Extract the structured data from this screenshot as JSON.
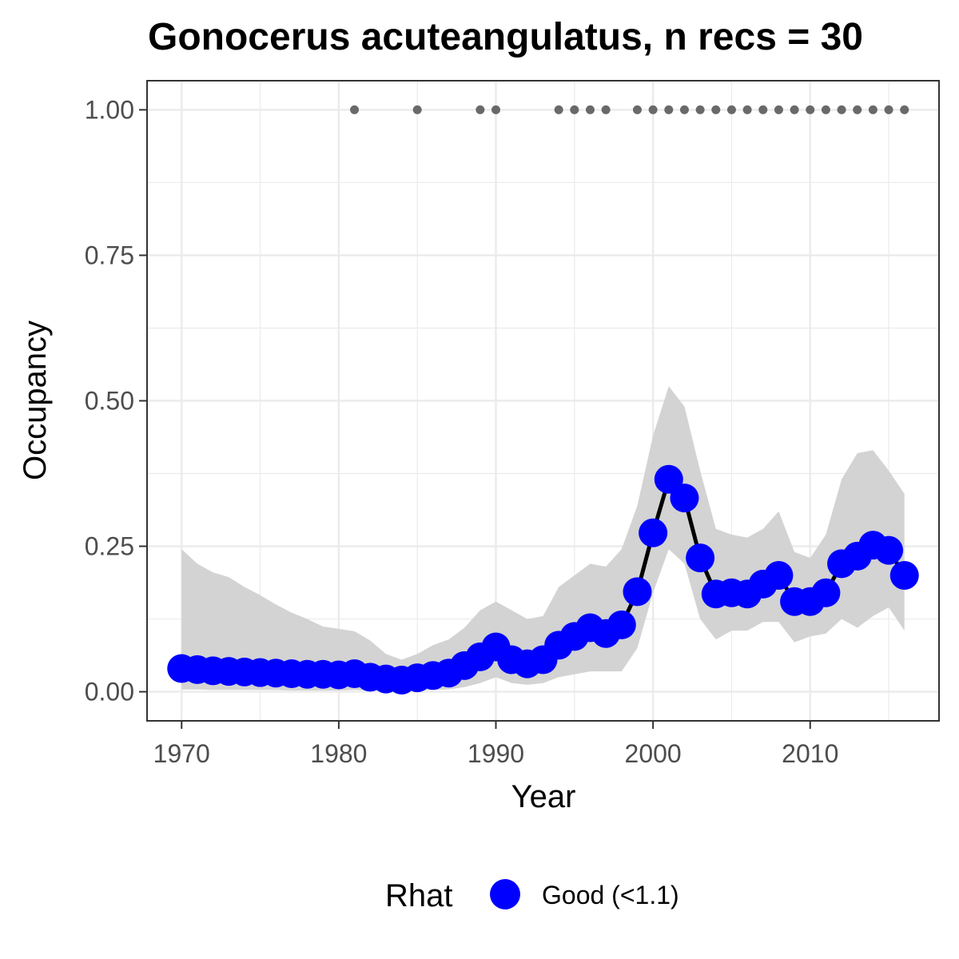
{
  "chart_data": {
    "type": "line",
    "title": "Gonocerus acuteangulatus, n recs = 30",
    "xlabel": "Year",
    "ylabel": "Occupancy",
    "xlim": [
      1967.8,
      2018.2
    ],
    "ylim": [
      -0.05,
      1.05
    ],
    "x_ticks": [
      1970,
      1980,
      1990,
      2000,
      2010
    ],
    "y_ticks": [
      0.0,
      0.25,
      0.5,
      0.75,
      1.0
    ],
    "y_tick_labels": [
      "0.00",
      "0.25",
      "0.50",
      "0.75",
      "1.00"
    ],
    "grid": true,
    "series": [
      {
        "name": "Good (<1.1)",
        "x": [
          1970,
          1971,
          1972,
          1973,
          1974,
          1975,
          1976,
          1977,
          1978,
          1979,
          1980,
          1981,
          1982,
          1983,
          1984,
          1985,
          1986,
          1987,
          1988,
          1989,
          1990,
          1991,
          1992,
          1993,
          1994,
          1995,
          1996,
          1997,
          1998,
          1999,
          2000,
          2001,
          2002,
          2003,
          2004,
          2005,
          2006,
          2007,
          2008,
          2009,
          2010,
          2011,
          2012,
          2013,
          2014,
          2015,
          2016
        ],
        "y": [
          0.04,
          0.038,
          0.036,
          0.035,
          0.034,
          0.033,
          0.032,
          0.031,
          0.03,
          0.03,
          0.029,
          0.031,
          0.025,
          0.022,
          0.02,
          0.024,
          0.028,
          0.032,
          0.045,
          0.06,
          0.077,
          0.055,
          0.048,
          0.055,
          0.08,
          0.095,
          0.11,
          0.1,
          0.115,
          0.172,
          0.273,
          0.365,
          0.333,
          0.23,
          0.168,
          0.17,
          0.168,
          0.185,
          0.2,
          0.155,
          0.155,
          0.17,
          0.22,
          0.233,
          0.252,
          0.243,
          0.2
        ],
        "lower": [
          0.004,
          0.004,
          0.003,
          0.003,
          0.003,
          0.003,
          0.003,
          0.002,
          0.002,
          0.002,
          0.002,
          0.003,
          0.002,
          0.002,
          0.002,
          0.002,
          0.003,
          0.004,
          0.008,
          0.015,
          0.025,
          0.015,
          0.012,
          0.015,
          0.025,
          0.03,
          0.035,
          0.035,
          0.035,
          0.075,
          0.17,
          0.245,
          0.22,
          0.125,
          0.09,
          0.105,
          0.105,
          0.12,
          0.12,
          0.085,
          0.095,
          0.1,
          0.125,
          0.11,
          0.13,
          0.145,
          0.105
        ],
        "upper": [
          0.245,
          0.22,
          0.205,
          0.197,
          0.18,
          0.166,
          0.15,
          0.136,
          0.125,
          0.112,
          0.108,
          0.104,
          0.088,
          0.065,
          0.055,
          0.065,
          0.08,
          0.09,
          0.11,
          0.14,
          0.155,
          0.14,
          0.125,
          0.13,
          0.18,
          0.2,
          0.22,
          0.215,
          0.245,
          0.32,
          0.44,
          0.525,
          0.49,
          0.38,
          0.28,
          0.27,
          0.265,
          0.28,
          0.31,
          0.24,
          0.23,
          0.27,
          0.365,
          0.41,
          0.415,
          0.38,
          0.34
        ],
        "color": "#0000ff"
      }
    ],
    "records": {
      "x": [
        1981,
        1985,
        1989,
        1990,
        1994,
        1995,
        1996,
        1997,
        1999,
        2000,
        2001,
        2002,
        2003,
        2004,
        2005,
        2006,
        2007,
        2008,
        2009,
        2010,
        2011,
        2012,
        2013,
        2014,
        2015,
        2016
      ],
      "y": 1.0,
      "color": "#696969"
    },
    "ribbon_color": "#d3d3d3",
    "line_color": "#000000",
    "legend": {
      "title": "Rhat",
      "placement": "bottom",
      "entries": [
        {
          "label": "Good (<1.1)",
          "color": "#0000ff"
        }
      ]
    }
  }
}
